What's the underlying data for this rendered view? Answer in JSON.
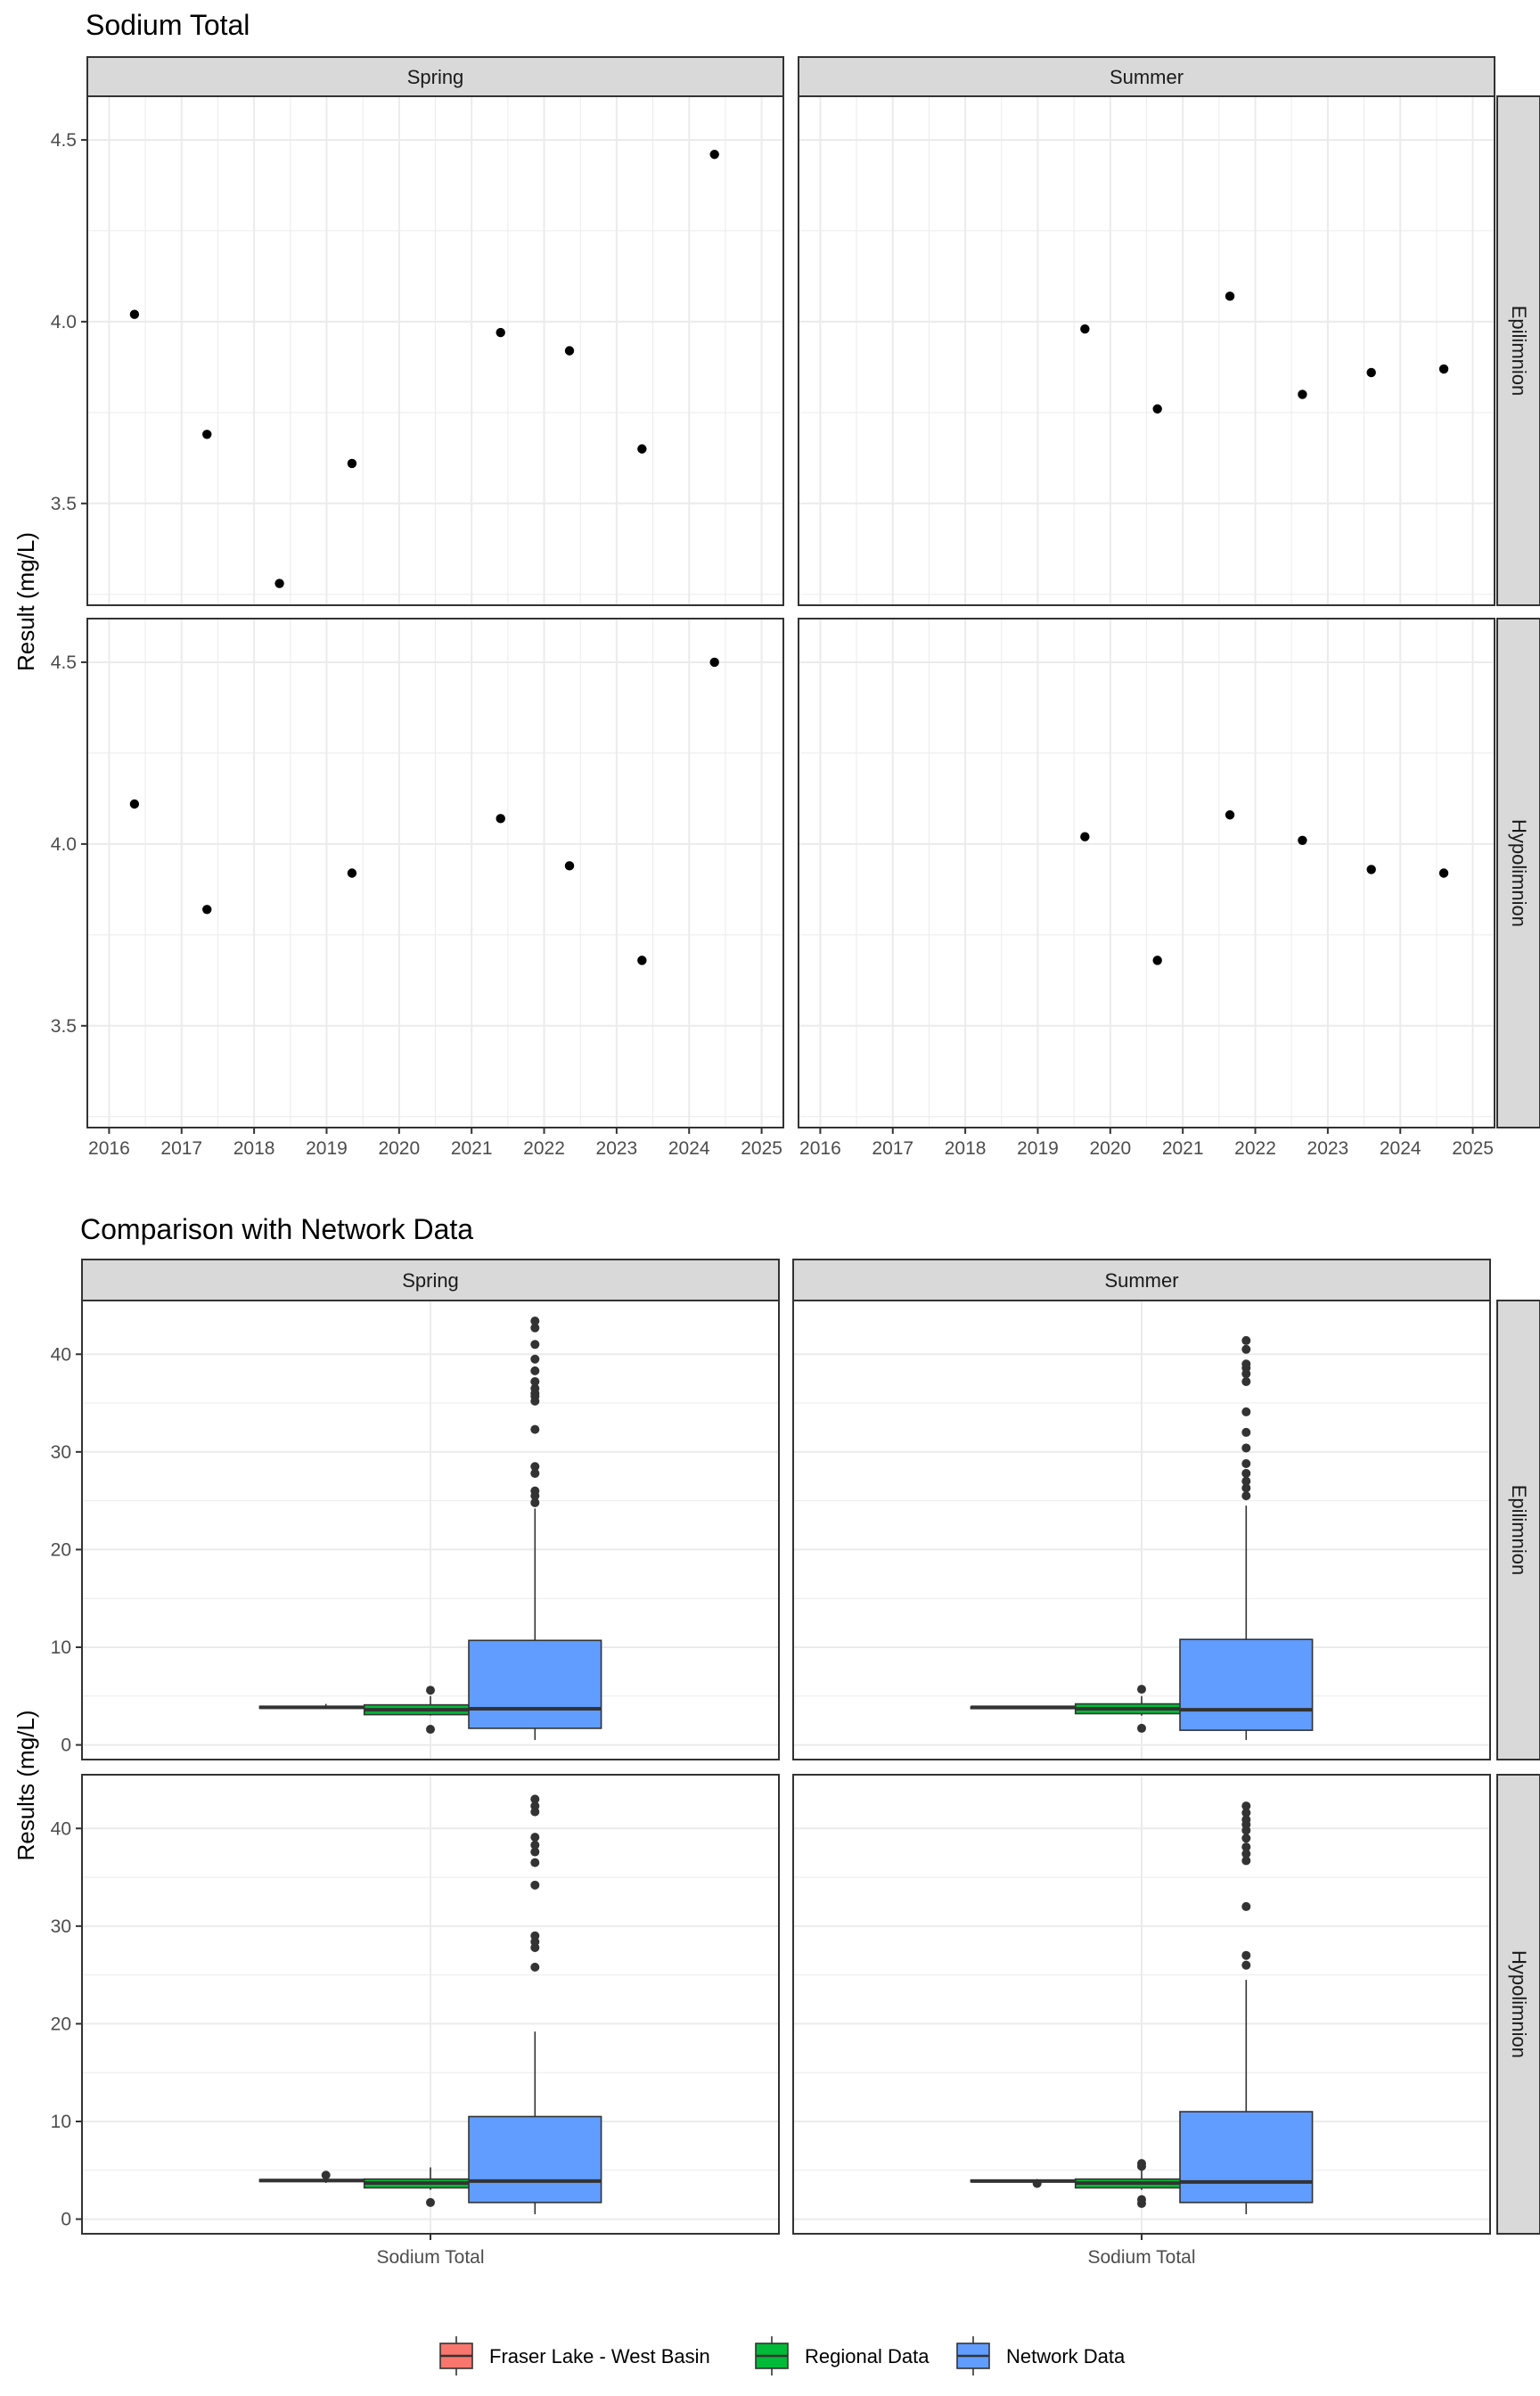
{
  "chart_data": [
    {
      "type": "scatter",
      "title": "Sodium Total",
      "ylabel": "Result (mg/L)",
      "xlabel": "",
      "x_ticks": [
        "2016",
        "2017",
        "2018",
        "2019",
        "2020",
        "2021",
        "2022",
        "2023",
        "2024",
        "2025"
      ],
      "y_ticks": [
        "3.5",
        "4.0",
        "4.5"
      ],
      "xlim": [
        2015.7,
        2025.3
      ],
      "ylim": [
        3.22,
        4.62
      ],
      "grid": true,
      "columns": [
        "Spring",
        "Summer"
      ],
      "rows": [
        "Epilimnion",
        "Hypolimnion"
      ],
      "panels": [
        {
          "season": "Spring",
          "layer": "Epilimnion",
          "points": [
            [
              2016.35,
              4.02
            ],
            [
              2017.35,
              3.69
            ],
            [
              2018.35,
              3.28
            ],
            [
              2019.35,
              3.61
            ],
            [
              2021.4,
              3.97
            ],
            [
              2022.35,
              3.92
            ],
            [
              2023.35,
              3.65
            ],
            [
              2024.35,
              4.46
            ]
          ]
        },
        {
          "season": "Summer",
          "layer": "Epilimnion",
          "points": [
            [
              2019.65,
              3.98
            ],
            [
              2020.65,
              3.76
            ],
            [
              2021.65,
              4.07
            ],
            [
              2022.65,
              3.8
            ],
            [
              2023.6,
              3.86
            ],
            [
              2024.6,
              3.87
            ]
          ]
        },
        {
          "season": "Spring",
          "layer": "Hypolimnion",
          "points": [
            [
              2016.35,
              4.11
            ],
            [
              2017.35,
              3.82
            ],
            [
              2019.35,
              3.92
            ],
            [
              2021.4,
              4.07
            ],
            [
              2022.35,
              3.94
            ],
            [
              2023.35,
              3.68
            ],
            [
              2024.35,
              4.5
            ]
          ]
        },
        {
          "season": "Summer",
          "layer": "Hypolimnion",
          "points": [
            [
              2019.65,
              4.02
            ],
            [
              2020.65,
              3.68
            ],
            [
              2021.65,
              4.08
            ],
            [
              2022.65,
              4.01
            ],
            [
              2023.6,
              3.93
            ],
            [
              2024.6,
              3.92
            ]
          ]
        }
      ]
    },
    {
      "type": "box",
      "title": "Comparison with Network Data",
      "ylabel": "Results (mg/L)",
      "xlabel": "",
      "category": "Sodium Total",
      "y_ticks": [
        "0",
        "10",
        "20",
        "30",
        "40"
      ],
      "ylim": [
        -1.5,
        45.5
      ],
      "grid": true,
      "columns": [
        "Spring",
        "Summer"
      ],
      "rows": [
        "Epilimnion",
        "Hypolimnion"
      ],
      "legend": {
        "position": "bottom",
        "entries": [
          {
            "name": "Fraser Lake - West Basin",
            "color": "#F8766D"
          },
          {
            "name": "Regional Data",
            "color": "#00BA38"
          },
          {
            "name": "Network Data",
            "color": "#619CFF"
          }
        ]
      },
      "panels": [
        {
          "season": "Spring",
          "layer": "Epilimnion",
          "boxes": [
            {
              "group": "Fraser Lake - West Basin",
              "lower": 3.7,
              "q1": 3.75,
              "median": 3.85,
              "q3": 3.95,
              "upper": 4.2,
              "outliers": []
            },
            {
              "group": "Regional Data",
              "lower": 3.0,
              "q1": 3.1,
              "median": 3.6,
              "q3": 4.1,
              "upper": 5.0,
              "outliers": [
                5.6,
                1.6
              ]
            },
            {
              "group": "Network Data",
              "lower": 0.5,
              "q1": 1.7,
              "median": 3.7,
              "q3": 10.7,
              "upper": 24.2,
              "outliers": [
                24.8,
                25.5,
                26.0,
                27.8,
                28.5,
                32.3,
                35.2,
                35.7,
                36.0,
                36.5,
                37.2,
                38.3,
                39.5,
                41.0,
                42.7,
                43.4
              ]
            }
          ]
        },
        {
          "season": "Summer",
          "layer": "Epilimnion",
          "boxes": [
            {
              "group": "Fraser Lake - West Basin",
              "lower": 3.75,
              "q1": 3.8,
              "median": 3.85,
              "q3": 3.9,
              "upper": 3.95,
              "outliers": []
            },
            {
              "group": "Regional Data",
              "lower": 3.0,
              "q1": 3.2,
              "median": 3.7,
              "q3": 4.2,
              "upper": 5.0,
              "outliers": [
                5.7,
                1.7
              ]
            },
            {
              "group": "Network Data",
              "lower": 0.5,
              "q1": 1.5,
              "median": 3.6,
              "q3": 10.8,
              "upper": 24.5,
              "outliers": [
                25.5,
                26.3,
                27.0,
                27.8,
                28.8,
                30.4,
                32.0,
                34.1,
                37.2,
                38.0,
                38.6,
                39.0,
                40.5,
                41.4
              ]
            }
          ]
        },
        {
          "season": "Spring",
          "layer": "Hypolimnion",
          "boxes": [
            {
              "group": "Fraser Lake - West Basin",
              "lower": 3.7,
              "q1": 3.85,
              "median": 3.95,
              "q3": 4.05,
              "upper": 4.2,
              "outliers": [
                4.5
              ]
            },
            {
              "group": "Regional Data",
              "lower": 3.0,
              "q1": 3.2,
              "median": 3.7,
              "q3": 4.1,
              "upper": 5.3,
              "outliers": [
                1.7
              ]
            },
            {
              "group": "Network Data",
              "lower": 0.5,
              "q1": 1.7,
              "median": 3.9,
              "q3": 10.5,
              "upper": 19.2,
              "outliers": [
                25.8,
                27.8,
                28.4,
                29.0,
                34.2,
                36.5,
                37.6,
                38.3,
                39.1,
                41.7,
                42.3,
                43.0
              ]
            }
          ]
        },
        {
          "season": "Summer",
          "layer": "Hypolimnion",
          "boxes": [
            {
              "group": "Fraser Lake - West Basin",
              "lower": 3.7,
              "q1": 3.85,
              "median": 3.9,
              "q3": 4.0,
              "upper": 4.05,
              "outliers": [
                3.65
              ]
            },
            {
              "group": "Regional Data",
              "lower": 3.0,
              "q1": 3.2,
              "median": 3.7,
              "q3": 4.1,
              "upper": 5.0,
              "outliers": [
                5.7,
                5.4,
                2.0,
                1.6
              ]
            },
            {
              "group": "Network Data",
              "lower": 0.5,
              "q1": 1.7,
              "median": 3.8,
              "q3": 11.0,
              "upper": 24.5,
              "outliers": [
                26.0,
                27.0,
                32.0,
                36.7,
                37.4,
                38.1,
                39.0,
                39.8,
                40.4,
                40.9,
                41.6,
                42.3
              ]
            }
          ]
        }
      ]
    }
  ]
}
